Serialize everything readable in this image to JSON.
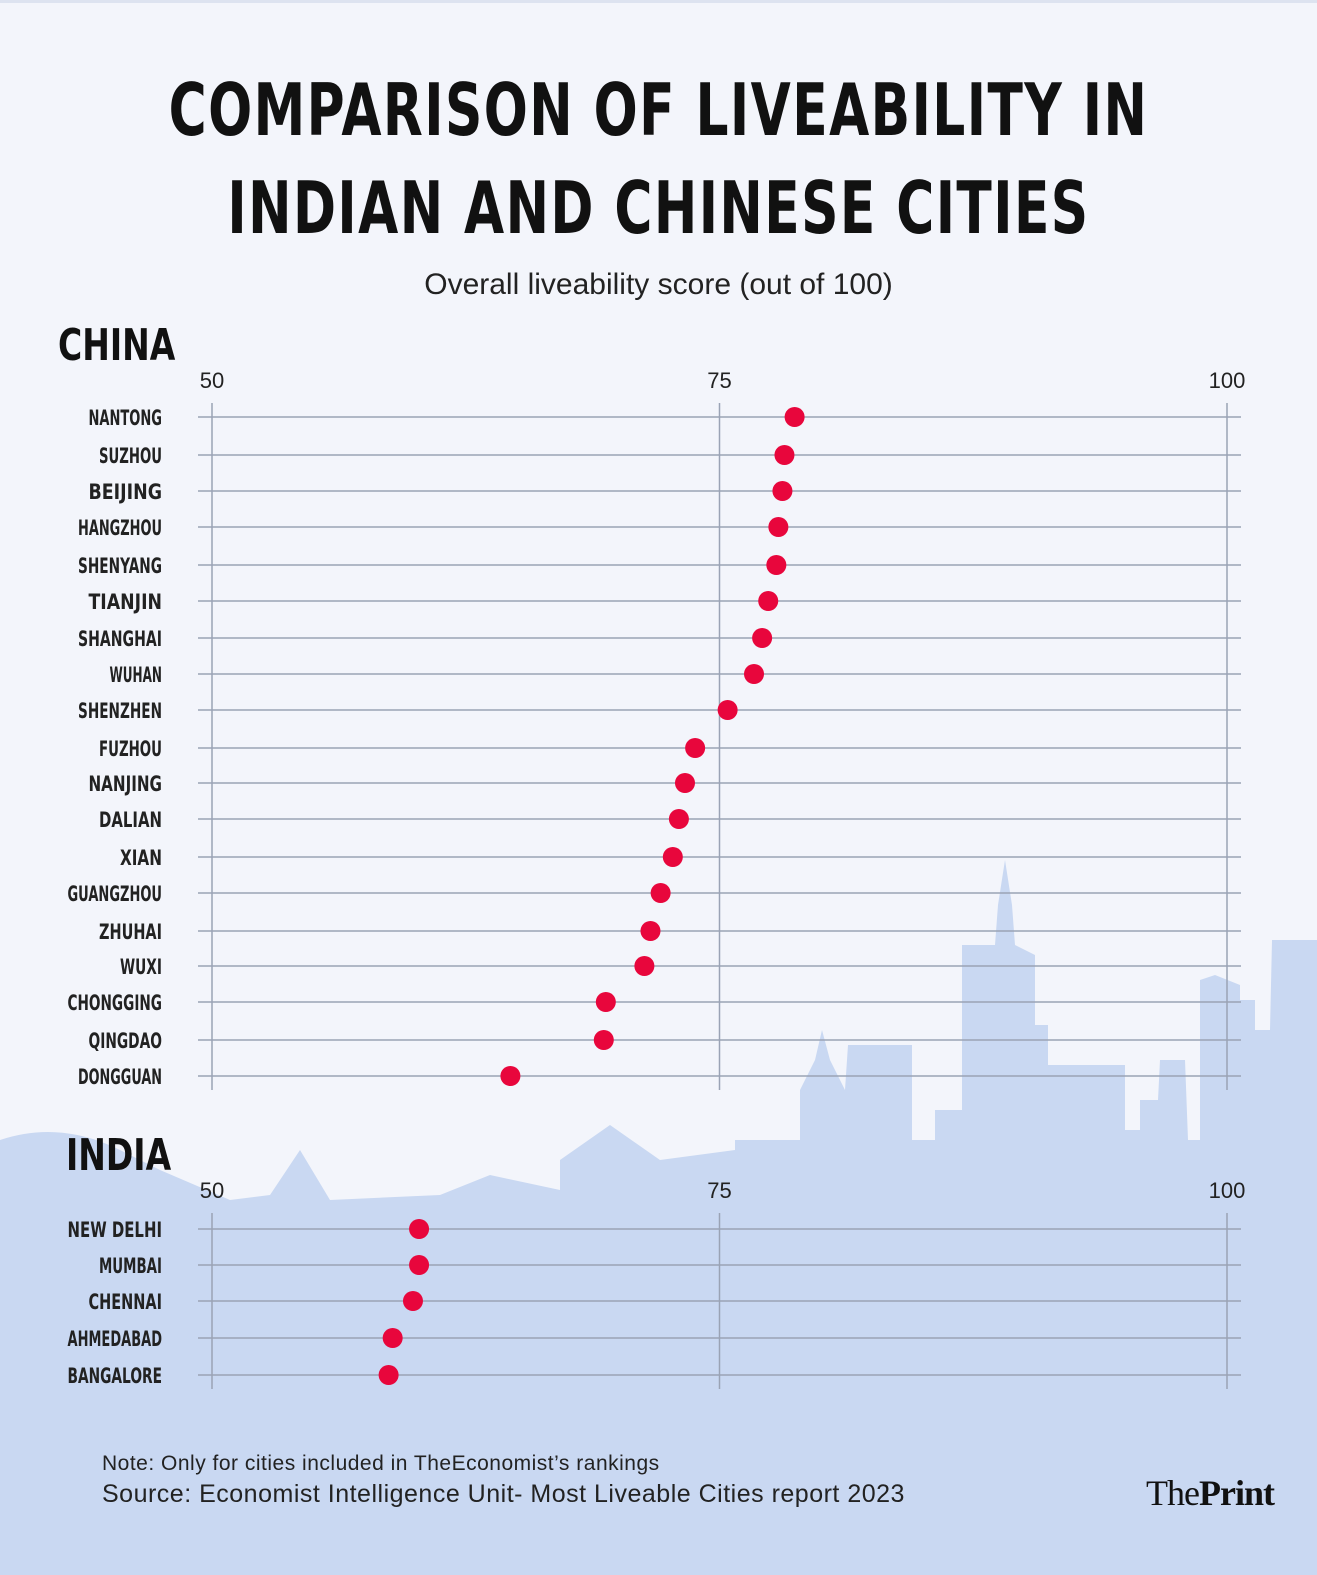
{
  "title_line1": "COMPARISON OF LIVEABILITY IN",
  "title_line2": "INDIAN AND CHINESE CITIES",
  "subtitle": "Overall liveability score (out of 100)",
  "note": "Note: Only for cities included in TheEconomist’s rankings",
  "source": "Source: Economist Intelligence  Unit- Most Liveable Cities report 2023",
  "logo": {
    "the": "The",
    "print": "Print"
  },
  "colors": {
    "dot": "#e8063c",
    "grid": "#9aa3b5",
    "background": "#f3f5fb",
    "skyline": "#c9d8f2"
  },
  "chart_data": [
    {
      "type": "scatter",
      "section_label": "CHINA",
      "xlim": [
        50,
        100
      ],
      "xticks": [
        "50",
        "75",
        "100"
      ],
      "grid": true,
      "categories": [
        "NANTONG",
        "SUZHOU",
        "BEIJING",
        "HANGZHOU",
        "SHENYANG",
        "TIANJIN",
        "SHANGHAI",
        "WUHAN",
        "SHENZHEN",
        "FUZHOU",
        "NANJING",
        "DALIAN",
        "XIAN",
        "GUANGZHOU",
        "ZHUHAI",
        "WUXI",
        "CHONGGING",
        "QINGDAO",
        "DONGGUAN"
      ],
      "values": [
        78.7,
        78.2,
        78.1,
        77.9,
        77.8,
        77.4,
        77.1,
        76.7,
        75.4,
        73.8,
        73.3,
        73.0,
        72.7,
        72.1,
        71.6,
        71.3,
        69.4,
        69.3,
        64.7
      ]
    },
    {
      "type": "scatter",
      "section_label": "INDIA",
      "xlim": [
        50,
        100
      ],
      "xticks": [
        "50",
        "75",
        "100"
      ],
      "grid": true,
      "categories": [
        "NEW DELHI",
        "MUMBAI",
        "CHENNAI",
        "AHMEDABAD",
        "BANGALORE"
      ],
      "values": [
        60.2,
        60.2,
        59.9,
        58.9,
        58.7
      ]
    }
  ]
}
